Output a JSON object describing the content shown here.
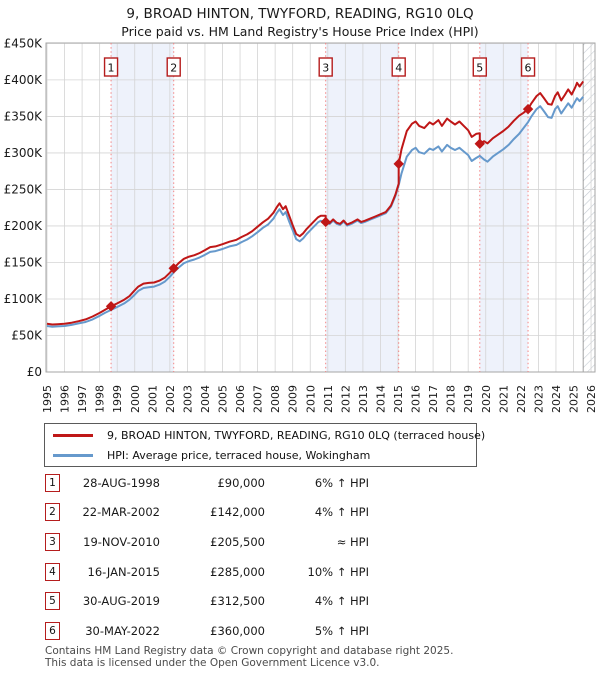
{
  "header": {
    "title": "9, BROAD HINTON, TWYFORD, READING, RG10 0LQ",
    "subtitle": "Price paid vs. HM Land Registry's House Price Index (HPI)"
  },
  "chart_data": {
    "type": "line",
    "title": "9, BROAD HINTON, TWYFORD, READING, RG10 0LQ",
    "x_axis": {
      "min": 1995,
      "max": 2026,
      "tick_labels": [
        "1995",
        "1996",
        "1997",
        "1998",
        "1999",
        "2000",
        "2001",
        "2002",
        "2003",
        "2004",
        "2005",
        "2006",
        "2007",
        "2008",
        "2009",
        "2010",
        "2011",
        "2012",
        "2013",
        "2014",
        "2015",
        "2016",
        "2017",
        "2018",
        "2019",
        "2020",
        "2021",
        "2022",
        "2023",
        "2024",
        "2025",
        "2026"
      ]
    },
    "y_axis": {
      "min": 0,
      "max": 450000,
      "tick_values_k": [
        0,
        50,
        100,
        150,
        200,
        250,
        300,
        350,
        400,
        450
      ],
      "tick_labels": [
        "£0",
        "£50K",
        "£100K",
        "£150K",
        "£200K",
        "£250K",
        "£300K",
        "£350K",
        "£400K",
        "£450K"
      ]
    },
    "series": [
      {
        "name": "9, BROAD HINTON, TWYFORD, READING, RG10 0LQ (terraced house)",
        "color": "#bf1717",
        "points_year_priceK": [
          [
            1995.0,
            66
          ],
          [
            1995.3,
            65
          ],
          [
            1995.6,
            65.5
          ],
          [
            1996.0,
            66
          ],
          [
            1996.4,
            67.5
          ],
          [
            1996.8,
            69.5
          ],
          [
            1997.2,
            72
          ],
          [
            1997.6,
            76
          ],
          [
            1998.0,
            81
          ],
          [
            1998.3,
            85
          ],
          [
            1998.65,
            90
          ],
          [
            1999.0,
            94
          ],
          [
            1999.4,
            99
          ],
          [
            1999.7,
            104
          ],
          [
            2000.0,
            112
          ],
          [
            2000.2,
            117
          ],
          [
            2000.5,
            121
          ],
          [
            2000.8,
            122
          ],
          [
            2001.1,
            122.5
          ],
          [
            2001.4,
            125
          ],
          [
            2001.7,
            129
          ],
          [
            2002.0,
            136
          ],
          [
            2002.22,
            142
          ],
          [
            2002.5,
            149
          ],
          [
            2002.8,
            155
          ],
          [
            2003.1,
            158
          ],
          [
            2003.4,
            160
          ],
          [
            2003.7,
            163
          ],
          [
            2004.0,
            167
          ],
          [
            2004.3,
            171
          ],
          [
            2004.6,
            172
          ],
          [
            2005.0,
            175
          ],
          [
            2005.4,
            178.5
          ],
          [
            2005.8,
            181
          ],
          [
            2006.1,
            185
          ],
          [
            2006.4,
            188.5
          ],
          [
            2006.7,
            193
          ],
          [
            2007.0,
            199
          ],
          [
            2007.3,
            205
          ],
          [
            2007.6,
            210
          ],
          [
            2007.9,
            218
          ],
          [
            2008.1,
            226
          ],
          [
            2008.25,
            231
          ],
          [
            2008.45,
            223
          ],
          [
            2008.6,
            227
          ],
          [
            2008.8,
            214
          ],
          [
            2009.0,
            201
          ],
          [
            2009.2,
            189
          ],
          [
            2009.4,
            186
          ],
          [
            2009.6,
            190
          ],
          [
            2009.8,
            196
          ],
          [
            2010.0,
            201
          ],
          [
            2010.2,
            206
          ],
          [
            2010.45,
            212
          ],
          [
            2010.6,
            214
          ],
          [
            2010.88,
            214
          ],
          [
            2010.88,
            205.5
          ],
          [
            2011.1,
            204
          ],
          [
            2011.3,
            209
          ],
          [
            2011.5,
            204.5
          ],
          [
            2011.7,
            203
          ],
          [
            2011.9,
            207.5
          ],
          [
            2012.1,
            202
          ],
          [
            2012.4,
            205
          ],
          [
            2012.7,
            209
          ],
          [
            2012.9,
            205.5
          ],
          [
            2013.1,
            207
          ],
          [
            2013.4,
            210
          ],
          [
            2013.7,
            213
          ],
          [
            2014.0,
            216
          ],
          [
            2014.3,
            219
          ],
          [
            2014.6,
            228
          ],
          [
            2014.85,
            243
          ],
          [
            2015.04,
            258
          ],
          [
            2015.04,
            285
          ],
          [
            2015.2,
            305
          ],
          [
            2015.5,
            330
          ],
          [
            2015.8,
            340
          ],
          [
            2016.0,
            343
          ],
          [
            2016.2,
            337
          ],
          [
            2016.5,
            334
          ],
          [
            2016.8,
            342
          ],
          [
            2017.0,
            339
          ],
          [
            2017.3,
            345
          ],
          [
            2017.5,
            337
          ],
          [
            2017.8,
            347
          ],
          [
            2018.0,
            343
          ],
          [
            2018.25,
            339
          ],
          [
            2018.5,
            343
          ],
          [
            2018.75,
            337
          ],
          [
            2019.0,
            331
          ],
          [
            2019.2,
            322
          ],
          [
            2019.45,
            326
          ],
          [
            2019.66,
            327
          ],
          [
            2019.66,
            312.5
          ],
          [
            2019.9,
            316
          ],
          [
            2020.1,
            313
          ],
          [
            2020.4,
            320
          ],
          [
            2020.7,
            325
          ],
          [
            2021.0,
            330
          ],
          [
            2021.3,
            336
          ],
          [
            2021.6,
            344
          ],
          [
            2021.9,
            351
          ],
          [
            2022.15,
            355
          ],
          [
            2022.41,
            360
          ],
          [
            2022.6,
            368
          ],
          [
            2022.9,
            378
          ],
          [
            2023.1,
            382
          ],
          [
            2023.35,
            374
          ],
          [
            2023.55,
            367
          ],
          [
            2023.75,
            366
          ],
          [
            2023.95,
            378
          ],
          [
            2024.1,
            383
          ],
          [
            2024.3,
            372
          ],
          [
            2024.5,
            379
          ],
          [
            2024.7,
            387
          ],
          [
            2024.9,
            380
          ],
          [
            2025.1,
            390
          ],
          [
            2025.2,
            396
          ],
          [
            2025.35,
            391
          ],
          [
            2025.55,
            398
          ]
        ]
      },
      {
        "name": "HPI: Average price, terraced house, Wokingham",
        "color": "#6699cc",
        "points_year_priceK": [
          [
            1995.0,
            63
          ],
          [
            1995.3,
            62
          ],
          [
            1995.6,
            62.5
          ],
          [
            1996.0,
            63
          ],
          [
            1996.4,
            64.5
          ],
          [
            1996.8,
            66.5
          ],
          [
            1997.2,
            68.5
          ],
          [
            1997.6,
            72
          ],
          [
            1998.0,
            77
          ],
          [
            1998.3,
            81
          ],
          [
            1998.65,
            85
          ],
          [
            1999.0,
            89
          ],
          [
            1999.4,
            94
          ],
          [
            1999.7,
            99
          ],
          [
            2000.0,
            106
          ],
          [
            2000.2,
            111
          ],
          [
            2000.5,
            115
          ],
          [
            2000.8,
            116
          ],
          [
            2001.1,
            117
          ],
          [
            2001.4,
            119.5
          ],
          [
            2001.7,
            123.5
          ],
          [
            2002.0,
            130.5
          ],
          [
            2002.22,
            136.5
          ],
          [
            2002.5,
            143
          ],
          [
            2002.8,
            149
          ],
          [
            2003.1,
            152
          ],
          [
            2003.4,
            154
          ],
          [
            2003.7,
            157
          ],
          [
            2004.0,
            160.5
          ],
          [
            2004.3,
            164.5
          ],
          [
            2004.6,
            165.5
          ],
          [
            2005.0,
            168.5
          ],
          [
            2005.4,
            172
          ],
          [
            2005.8,
            174
          ],
          [
            2006.1,
            178
          ],
          [
            2006.4,
            181.5
          ],
          [
            2006.7,
            186
          ],
          [
            2007.0,
            191.5
          ],
          [
            2007.3,
            197.5
          ],
          [
            2007.6,
            202
          ],
          [
            2007.9,
            210
          ],
          [
            2008.1,
            218
          ],
          [
            2008.25,
            223
          ],
          [
            2008.45,
            215
          ],
          [
            2008.6,
            219
          ],
          [
            2008.8,
            206
          ],
          [
            2009.0,
            194
          ],
          [
            2009.2,
            182
          ],
          [
            2009.4,
            179
          ],
          [
            2009.6,
            183
          ],
          [
            2009.8,
            189
          ],
          [
            2010.0,
            194
          ],
          [
            2010.2,
            199
          ],
          [
            2010.45,
            205
          ],
          [
            2010.6,
            207
          ],
          [
            2010.88,
            204.5
          ],
          [
            2011.1,
            202.5
          ],
          [
            2011.3,
            207.5
          ],
          [
            2011.5,
            203
          ],
          [
            2011.7,
            201.5
          ],
          [
            2011.9,
            206
          ],
          [
            2012.1,
            200.5
          ],
          [
            2012.4,
            203.5
          ],
          [
            2012.7,
            207.5
          ],
          [
            2012.9,
            204
          ],
          [
            2013.1,
            205.5
          ],
          [
            2013.4,
            208.5
          ],
          [
            2013.7,
            211.5
          ],
          [
            2014.0,
            214.5
          ],
          [
            2014.3,
            217.5
          ],
          [
            2014.6,
            226.5
          ],
          [
            2014.85,
            241
          ],
          [
            2015.04,
            256
          ],
          [
            2015.2,
            272
          ],
          [
            2015.5,
            295
          ],
          [
            2015.8,
            304
          ],
          [
            2016.0,
            307
          ],
          [
            2016.2,
            301
          ],
          [
            2016.5,
            299
          ],
          [
            2016.8,
            306
          ],
          [
            2017.0,
            304
          ],
          [
            2017.3,
            309
          ],
          [
            2017.5,
            302
          ],
          [
            2017.8,
            311
          ],
          [
            2018.0,
            307
          ],
          [
            2018.25,
            304
          ],
          [
            2018.5,
            307
          ],
          [
            2018.75,
            302
          ],
          [
            2019.0,
            297
          ],
          [
            2019.2,
            289
          ],
          [
            2019.45,
            293
          ],
          [
            2019.66,
            296
          ],
          [
            2019.9,
            291
          ],
          [
            2020.1,
            288
          ],
          [
            2020.4,
            295
          ],
          [
            2020.7,
            300
          ],
          [
            2021.0,
            305
          ],
          [
            2021.3,
            311
          ],
          [
            2021.6,
            319
          ],
          [
            2021.9,
            326
          ],
          [
            2022.15,
            334
          ],
          [
            2022.41,
            342
          ],
          [
            2022.6,
            350
          ],
          [
            2022.9,
            360
          ],
          [
            2023.1,
            364
          ],
          [
            2023.35,
            356
          ],
          [
            2023.55,
            349
          ],
          [
            2023.75,
            348
          ],
          [
            2023.95,
            360
          ],
          [
            2024.1,
            364
          ],
          [
            2024.3,
            354
          ],
          [
            2024.5,
            361
          ],
          [
            2024.7,
            368
          ],
          [
            2024.9,
            362
          ],
          [
            2025.1,
            371
          ],
          [
            2025.2,
            375
          ],
          [
            2025.35,
            371
          ],
          [
            2025.55,
            377
          ]
        ]
      }
    ],
    "sales": [
      {
        "label": "1",
        "year": 1998.65,
        "price_k": 90
      },
      {
        "label": "2",
        "year": 2002.22,
        "price_k": 142
      },
      {
        "label": "3",
        "year": 2010.88,
        "price_k": 205.5
      },
      {
        "label": "4",
        "year": 2015.04,
        "price_k": 285
      },
      {
        "label": "5",
        "year": 2019.66,
        "price_k": 312.5
      },
      {
        "label": "6",
        "year": 2022.41,
        "price_k": 360
      }
    ],
    "ownership_bands": [
      [
        1998.65,
        2002.22
      ],
      [
        2010.88,
        2015.04
      ],
      [
        2019.66,
        2022.41
      ]
    ],
    "future_hatch_from_year": 2025.55,
    "grid": true,
    "legend_position": "below",
    "colors": {
      "price_line": "#bf1717",
      "hpi_line": "#6699cc",
      "sale_dashed_line": "#f48484",
      "ownership_band": "#eef2fb",
      "grid": "#d4d4d4",
      "plot_border": "#a6a6a6",
      "hatch_line": "#c4cad2",
      "marker_box_border": "#b51d1d"
    }
  },
  "transactions": {
    "rows": [
      {
        "num": "1",
        "date": "28-AUG-1998",
        "price": "£90,000",
        "vs_hpi": "6% ↑ HPI"
      },
      {
        "num": "2",
        "date": "22-MAR-2002",
        "price": "£142,000",
        "vs_hpi": "4% ↑ HPI"
      },
      {
        "num": "3",
        "date": "19-NOV-2010",
        "price": "£205,500",
        "vs_hpi": "≈ HPI"
      },
      {
        "num": "4",
        "date": "16-JAN-2015",
        "price": "£285,000",
        "vs_hpi": "10% ↑ HPI"
      },
      {
        "num": "5",
        "date": "30-AUG-2019",
        "price": "£312,500",
        "vs_hpi": "4% ↑ HPI"
      },
      {
        "num": "6",
        "date": "30-MAY-2022",
        "price": "£360,000",
        "vs_hpi": "5% ↑ HPI"
      }
    ]
  },
  "footer": {
    "line1": "Contains HM Land Registry data © Crown copyright and database right 2025.",
    "line2": "This data is licensed under the Open Government Licence v3.0."
  }
}
